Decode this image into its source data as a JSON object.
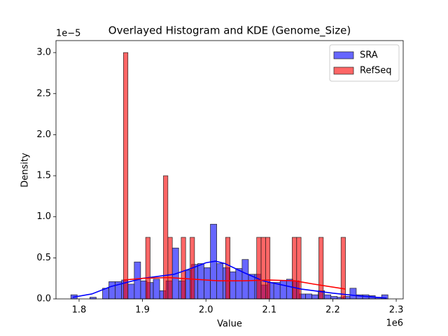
{
  "chart_data": {
    "type": "histogram",
    "title": "Overlayed Histogram and KDE (Genome_Size)",
    "x_label": "Value",
    "y_label": "Density",
    "x_offset_label": "1e6",
    "y_offset_label": "1e−5",
    "xlim": [
      1.7636,
      2.311
    ],
    "ylim": [
      0,
      3.146
    ],
    "xticks": [
      1.8,
      1.9,
      {
        "value": 2,
        "label": "2.0"
      },
      2.1,
      2.2,
      2.3
    ],
    "yticks": [
      {
        "value": 0,
        "label": "0.0"
      },
      {
        "value": 0.5,
        "label": "0.5"
      },
      {
        "value": 1,
        "label": "1.0"
      },
      {
        "value": 1.5,
        "label": "1.5"
      },
      {
        "value": 2,
        "label": "2.0"
      },
      {
        "value": 2.5,
        "label": "2.5"
      },
      {
        "value": 3,
        "label": "3.0"
      }
    ],
    "legend": "upper right",
    "series": [
      {
        "name": "SRA",
        "color": "#0000ff",
        "bins": [
          1.787,
          1.797,
          1.807,
          1.817,
          1.827,
          1.837,
          1.847,
          1.857,
          1.867,
          1.877,
          1.887,
          1.897,
          1.907,
          1.917,
          1.927,
          1.937,
          1.947,
          1.957,
          1.967,
          1.977,
          1.987,
          1.997,
          2.007,
          2.017,
          2.027,
          2.037,
          2.047,
          2.057,
          2.067,
          2.077,
          2.087,
          2.097,
          2.107,
          2.117,
          2.127,
          2.137,
          2.147,
          2.157,
          2.167,
          2.177,
          2.187,
          2.197,
          2.207,
          2.217,
          2.227,
          2.237,
          2.247,
          2.257,
          2.267,
          2.277,
          2.287
        ],
        "values": [
          0.05,
          0,
          0,
          0.02,
          0,
          0.13,
          0.21,
          0.21,
          0.23,
          0.18,
          0.45,
          0.22,
          0.2,
          0.24,
          0.1,
          0.22,
          0.62,
          0.22,
          0.35,
          0.42,
          0.43,
          0.38,
          0.91,
          0.43,
          0.38,
          0.33,
          0.37,
          0.48,
          0.3,
          0.3,
          0.17,
          0.2,
          0.2,
          0.22,
          0.24,
          0.22,
          0.06,
          0.06,
          0.05,
          0.1,
          0.05,
          0.03,
          0.02,
          0.03,
          0.13,
          0.05,
          0.05,
          0.04,
          0.02,
          0.05
        ],
        "kde_x": [
          1.79,
          1.82,
          1.85,
          1.9,
          1.95,
          1.98,
          2.0,
          2.015,
          2.03,
          2.06,
          2.09,
          2.12,
          2.15,
          2.2,
          2.25,
          2.285
        ],
        "kde_values": [
          0.02,
          0.06,
          0.15,
          0.25,
          0.3,
          0.38,
          0.44,
          0.46,
          0.43,
          0.32,
          0.22,
          0.17,
          0.12,
          0.07,
          0.03,
          0.01
        ]
      },
      {
        "name": "RefSeq",
        "color": "#ff0000",
        "bins": [
          1.87,
          1.877,
          1.884,
          1.891,
          1.898,
          1.905,
          1.912,
          1.919,
          1.926,
          1.933,
          1.94,
          1.947,
          1.954,
          1.961,
          1.968,
          1.975,
          1.982,
          1.989,
          1.996,
          2.003,
          2.01,
          2.017,
          2.024,
          2.031,
          2.038,
          2.045,
          2.052,
          2.059,
          2.066,
          2.073,
          2.08,
          2.087,
          2.094,
          2.101,
          2.108,
          2.115,
          2.122,
          2.129,
          2.136,
          2.143,
          2.15,
          2.157,
          2.164,
          2.171,
          2.178,
          2.185,
          2.192,
          2.199,
          2.206,
          2.213,
          2.22
        ],
        "values": [
          3,
          0,
          0,
          0,
          0,
          0.75,
          0,
          0,
          0,
          1.5,
          0.75,
          0,
          0,
          0.75,
          0,
          0.75,
          0,
          0,
          0,
          0,
          0,
          0,
          0,
          0.75,
          0,
          0,
          0,
          0,
          0,
          0,
          0.75,
          0.75,
          0.75,
          0,
          0,
          0,
          0,
          0,
          0.75,
          0.75,
          0,
          0,
          0,
          0,
          0.75,
          0,
          0,
          0,
          0,
          0.75
        ],
        "kde_x": [
          1.87,
          1.9,
          1.94,
          1.98,
          2.02,
          2.06,
          2.1,
          2.14,
          2.17,
          2.22
        ],
        "kde_values": [
          0.23,
          0.25,
          0.26,
          0.24,
          0.22,
          0.22,
          0.23,
          0.22,
          0.18,
          0.12
        ]
      }
    ]
  }
}
